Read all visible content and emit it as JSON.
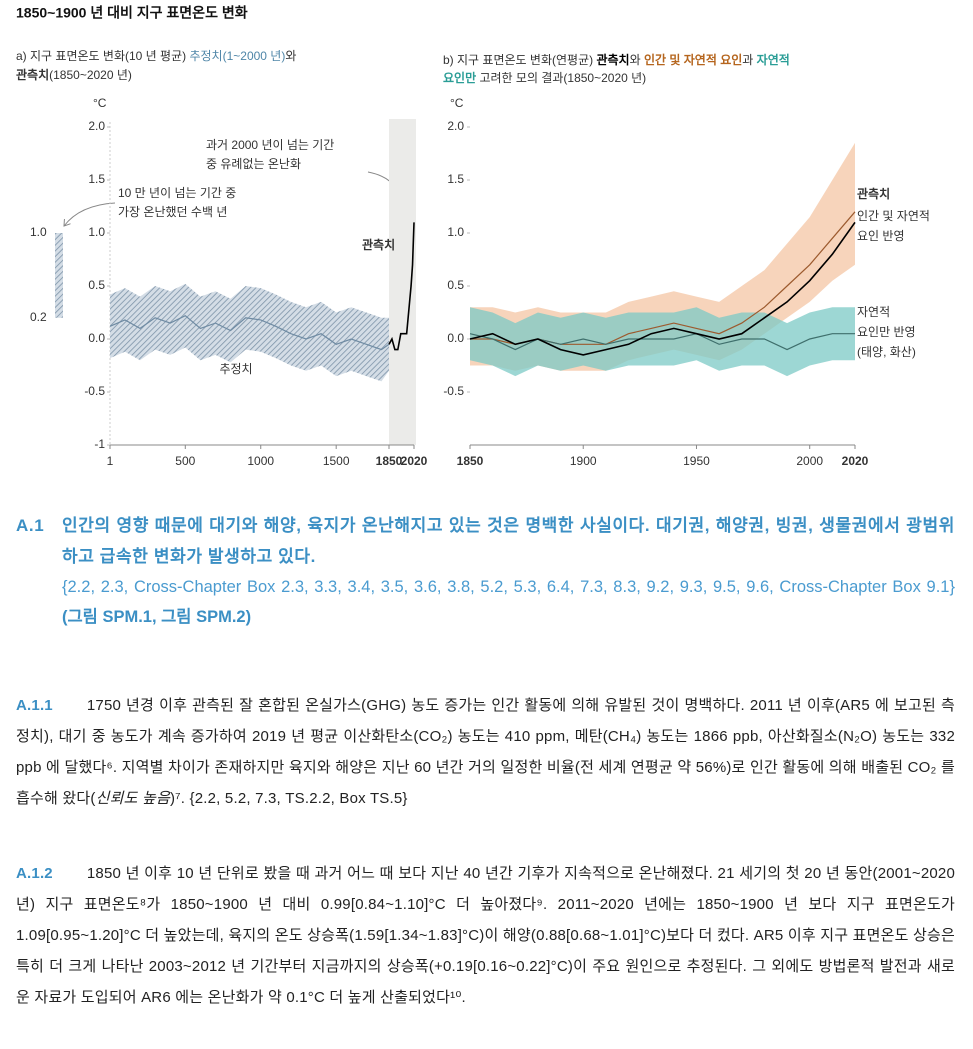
{
  "title": "1850~1900 년 대비 지구 표면온도 변화",
  "chart_data": [
    {
      "type": "line",
      "title_lines": [
        [
          "a) 지구 표면온도 변화(10 년 평균) ",
          "추정치(1~2000 년)",
          "와"
        ],
        [
          "관측치",
          "(1850~2020 년)"
        ]
      ],
      "y_unit": "°C",
      "xlim": [
        1,
        2020
      ],
      "xticks": [
        1,
        500,
        1000,
        1500,
        1850,
        2020
      ],
      "shaded_range": [
        1850,
        2020
      ],
      "ylim": [
        -1,
        2
      ],
      "yticks": [
        -1,
        -0.5,
        {
          "value": 0,
          "label": "0.0"
        },
        0.5,
        {
          "value": 1,
          "label": "1.0"
        },
        1.5,
        {
          "value": 2,
          "label": "2.0"
        }
      ],
      "band_hatch": true,
      "series": [
        {
          "name": "추정치",
          "color": "#6f8ba3",
          "band_color": "#8aa0b5",
          "x": [
            1,
            100,
            200,
            300,
            400,
            500,
            600,
            700,
            800,
            900,
            1000,
            1100,
            1200,
            1300,
            1400,
            1500,
            1600,
            1700,
            1800,
            1850
          ],
          "values": [
            0.12,
            0.18,
            0.1,
            0.2,
            0.15,
            0.22,
            0.1,
            0.15,
            0.08,
            0.2,
            0.18,
            0.12,
            0.05,
            0.0,
            0.05,
            -0.05,
            0.0,
            -0.05,
            -0.1,
            -0.05
          ],
          "lower": [
            -0.18,
            -0.12,
            -0.2,
            -0.1,
            -0.15,
            -0.08,
            -0.2,
            -0.15,
            -0.22,
            -0.1,
            -0.12,
            -0.18,
            -0.25,
            -0.3,
            -0.25,
            -0.35,
            -0.3,
            -0.35,
            -0.4,
            -0.3
          ],
          "upper": [
            0.42,
            0.48,
            0.4,
            0.5,
            0.45,
            0.52,
            0.4,
            0.45,
            0.38,
            0.5,
            0.48,
            0.42,
            0.35,
            0.3,
            0.35,
            0.25,
            0.3,
            0.25,
            0.2,
            0.2
          ]
        },
        {
          "name": "관측치",
          "color": "#000000",
          "x": [
            1850,
            1870,
            1890,
            1910,
            1930,
            1950,
            1970,
            1990,
            2000,
            2010,
            2020
          ],
          "values": [
            -0.05,
            0.0,
            -0.1,
            -0.1,
            0.05,
            0.05,
            0.05,
            0.35,
            0.5,
            0.7,
            1.1
          ]
        }
      ],
      "warm_period": {
        "label_lines": [
          "10 만 년이 넘는 기간 중",
          "가장 온난했던 수백 년"
        ],
        "range": [
          0.2,
          1.0
        ],
        "range_labels": [
          "0.2",
          "1.0"
        ]
      },
      "annotation_lines": [
        "과거 2000 년이 넘는 기간",
        "중 유례없는 온난화"
      ]
    },
    {
      "type": "line",
      "title_lines": [
        [
          "b) 지구 표면온도 변화(연평균) ",
          "관측치",
          "와 ",
          "인간 및 자연적 요인",
          "과 ",
          "자연적"
        ],
        [
          "요인만",
          " 고려한 모의 결과(1850~2020 년)"
        ]
      ],
      "y_unit": "°C",
      "xlim": [
        1850,
        2020
      ],
      "xticks": [
        1850,
        1900,
        1950,
        2000,
        2020
      ],
      "ylim": [
        -1,
        2
      ],
      "yticks": [
        -0.5,
        {
          "value": 0,
          "label": "0.0"
        },
        0.5,
        {
          "value": 1,
          "label": "1.0"
        },
        1.5,
        {
          "value": 2,
          "label": "2.0"
        }
      ],
      "x": [
        1850,
        1860,
        1870,
        1880,
        1890,
        1900,
        1910,
        1920,
        1930,
        1940,
        1950,
        1960,
        1970,
        1980,
        1990,
        2000,
        2010,
        2020
      ],
      "series": [
        {
          "name_lines": [
            "인간 및 자연적",
            "요인 반영"
          ],
          "color": "#9c5a2e",
          "band_color": "#f4c6a4",
          "values": [
            0.0,
            0.0,
            -0.05,
            0.0,
            -0.05,
            -0.05,
            -0.05,
            0.05,
            0.1,
            0.15,
            0.1,
            0.05,
            0.15,
            0.3,
            0.5,
            0.7,
            0.95,
            1.2
          ],
          "lower": [
            -0.25,
            -0.25,
            -0.3,
            -0.25,
            -0.3,
            -0.3,
            -0.3,
            -0.2,
            -0.15,
            -0.1,
            -0.15,
            -0.2,
            -0.1,
            0.05,
            0.2,
            0.35,
            0.55,
            0.7
          ],
          "upper": [
            0.3,
            0.3,
            0.25,
            0.3,
            0.25,
            0.25,
            0.25,
            0.35,
            0.4,
            0.45,
            0.4,
            0.35,
            0.5,
            0.65,
            0.9,
            1.15,
            1.5,
            1.85
          ]
        },
        {
          "name_lines": [
            "자연적",
            "요인만 반영",
            "(태양, 화산)"
          ],
          "color": "#3f6f6c",
          "band_color": "#7ccac5",
          "values": [
            0.05,
            0.0,
            -0.1,
            0.0,
            -0.05,
            0.0,
            -0.05,
            0.0,
            0.0,
            0.0,
            0.05,
            -0.05,
            0.0,
            0.0,
            -0.1,
            0.0,
            0.05,
            0.05
          ],
          "lower": [
            -0.2,
            -0.25,
            -0.35,
            -0.25,
            -0.3,
            -0.25,
            -0.3,
            -0.25,
            -0.25,
            -0.25,
            -0.2,
            -0.3,
            -0.25,
            -0.25,
            -0.35,
            -0.25,
            -0.2,
            -0.2
          ],
          "upper": [
            0.3,
            0.25,
            0.15,
            0.25,
            0.2,
            0.25,
            0.2,
            0.25,
            0.25,
            0.25,
            0.3,
            0.2,
            0.25,
            0.25,
            0.15,
            0.25,
            0.3,
            0.3
          ]
        },
        {
          "name": "관측치",
          "color": "#000000",
          "values": [
            0.0,
            0.05,
            -0.05,
            0.0,
            -0.1,
            -0.15,
            -0.1,
            -0.05,
            0.05,
            0.1,
            0.05,
            0.0,
            0.05,
            0.2,
            0.35,
            0.55,
            0.8,
            1.1
          ]
        }
      ]
    }
  ],
  "sections": [
    {
      "id": "A.1",
      "heading": "인간의 영향 때문에 대기와 해양, 육지가 온난해지고 있는 것은 명백한 사실이다. 대기권, 해양권, 빙권, 생물권에서 광범위하고 급속한 변화가 발생하고 있다.",
      "refs": "{2.2, 2.3, Cross-Chapter Box 2.3, 3.3, 3.4, 3.5, 3.6, 3.8, 5.2, 5.3, 6.4, 7.3, 8.3, 9.2, 9.3, 9.5, 9.6, Cross-Chapter Box 9.1}",
      "figure_refs": "(그림 SPM.1, 그림 SPM.2)"
    },
    {
      "id": "A.1.1",
      "text_parts": [
        "1750 년경 이후 관측된 잘 혼합된 온실가스(GHG) 농도 증가는 인간 활동에 의해 유발된 것이 명백하다. 2011 년 이후(AR5 에 보고된 측정치), 대기 중 농도가 계속 증가하여 2019 년 평균 이산화탄소(CO₂) 농도는 410 ppm, 메탄(CH₄) 농도는 1866 ppb, 아산화질소(N₂O) 농도는 332 ppb 에 달했다⁶. 지역별 차이가 존재하지만 육지와 해양은 지난 60 년간 거의 일정한 비율(전 세계 연평균 약 56%)로 인간 활동에 의해 배출된 CO₂ 를 흡수해 왔다(",
        "신뢰도 높음",
        ")⁷. {2.2, 5.2, 7.3, TS.2.2, Box TS.5}"
      ]
    },
    {
      "id": "A.1.2",
      "text": "1850 년 이후 10 년 단위로 봤을 때 과거 어느 때 보다 지난 40 년간 기후가 지속적으로 온난해졌다. 21 세기의 첫 20 년 동안(2001~2020 년) 지구 표면온도⁸가 1850~1900 년 대비 0.99[0.84~1.10]°C 더 높아졌다⁹. 2011~2020 년에는 1850~1900 년 보다 지구 표면온도가 1.09[0.95~1.20]°C 더 높았는데, 육지의 온도 상승폭(1.59[1.34~1.83]°C)이 해양(0.88[0.68~1.01]°C)보다 더 컸다. AR5 이후 지구 표면온도 상승은 특히 더 크게 나타난 2003~2012 년 기간부터 지금까지의 상승폭(+0.19[0.16~0.22]°C)이 주요 원인으로 추정된다. 그 외에도 방법론적 발전과 새로운 자료가 도입되어 AR6 에는 온난화가 약 0.1°C 더 높게 산출되었다¹⁰."
    }
  ]
}
